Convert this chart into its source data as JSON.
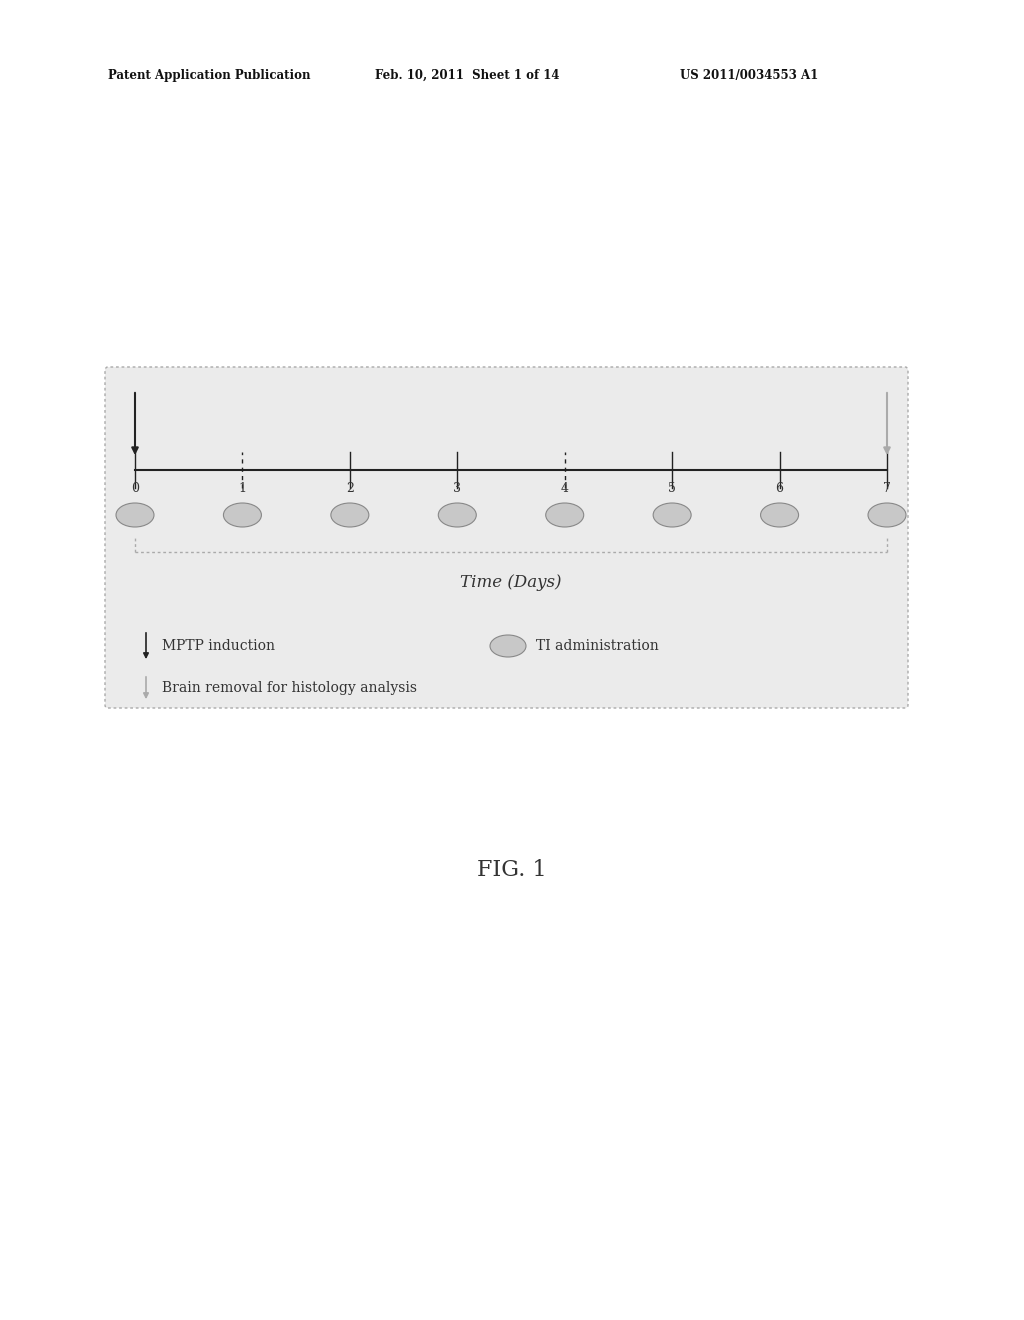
{
  "background_color": "#ffffff",
  "patent_header_left": "Patent Application Publication",
  "patent_header_mid": "Feb. 10, 2011  Sheet 1 of 14",
  "patent_header_right": "US 2011/0034553 A1",
  "fig_label": "FIG. 1",
  "time_label": "Time (Days)",
  "days": [
    0,
    1,
    2,
    3,
    4,
    5,
    6,
    7
  ],
  "legend_mptp": "MPTP induction",
  "legend_ti_symbol": "TI administration",
  "legend_brain": "Brain removal for histology analysis",
  "box_bg": "#ebebeb",
  "box_border": "#aaaaaa",
  "pill_color": "#c8c8c8",
  "pill_border": "#888888",
  "timeline_color": "#222222",
  "arrow_color": "#222222",
  "text_color": "#333333",
  "header_color": "#111111"
}
